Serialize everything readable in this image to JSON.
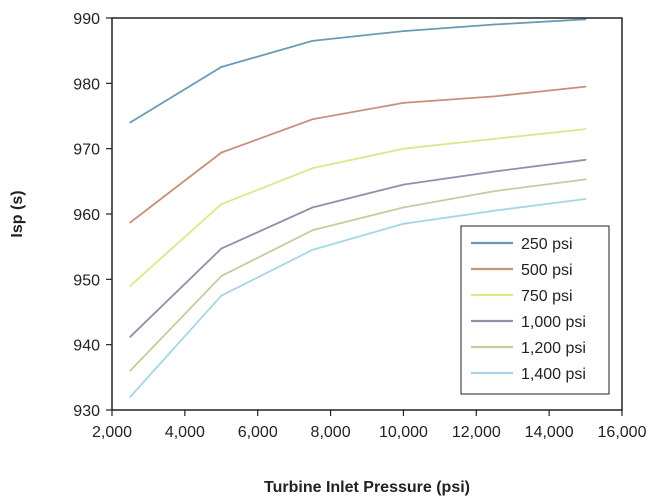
{
  "chart_data": {
    "type": "line",
    "title": "",
    "xlabel": "Turbine Inlet Pressure (psi)",
    "ylabel": "Isp (s)",
    "xlim": [
      2000,
      16000
    ],
    "ylim": [
      930,
      990
    ],
    "xticks": [
      2000,
      4000,
      6000,
      8000,
      10000,
      12000,
      14000,
      16000
    ],
    "xtick_labels": [
      "2,000",
      "4,000",
      "6,000",
      "8,000",
      "10,000",
      "12,000",
      "14,000",
      "16,000"
    ],
    "yticks": [
      930,
      940,
      950,
      960,
      970,
      980,
      990
    ],
    "ytick_labels": [
      "930",
      "940",
      "950",
      "960",
      "970",
      "980",
      "990"
    ],
    "grid": false,
    "legend_position": "bottom-right",
    "x": [
      2500,
      5000,
      7500,
      10000,
      12500,
      15000
    ],
    "series": [
      {
        "name": "250 psi",
        "color": "#6b9ab5",
        "values": [
          974.0,
          982.5,
          986.5,
          988.0,
          989.0,
          989.8
        ]
      },
      {
        "name": "500 psi",
        "color": "#c8907a",
        "values": [
          958.7,
          969.4,
          974.5,
          977.0,
          978.0,
          979.5
        ]
      },
      {
        "name": "750 psi",
        "color": "#dde68a",
        "values": [
          949.0,
          961.5,
          967.0,
          970.0,
          971.5,
          973.0
        ]
      },
      {
        "name": "1,000 psi",
        "color": "#9a8bab",
        "values": [
          941.2,
          954.7,
          961.0,
          964.5,
          966.5,
          968.3
        ]
      },
      {
        "name": "1,200 psi",
        "color": "#c4cca0",
        "values": [
          936.0,
          950.5,
          957.5,
          961.0,
          963.5,
          965.3
        ]
      },
      {
        "name": "1,400 psi",
        "color": "#a6d6e6",
        "values": [
          932.0,
          947.5,
          954.5,
          958.5,
          960.5,
          962.3
        ]
      }
    ]
  }
}
